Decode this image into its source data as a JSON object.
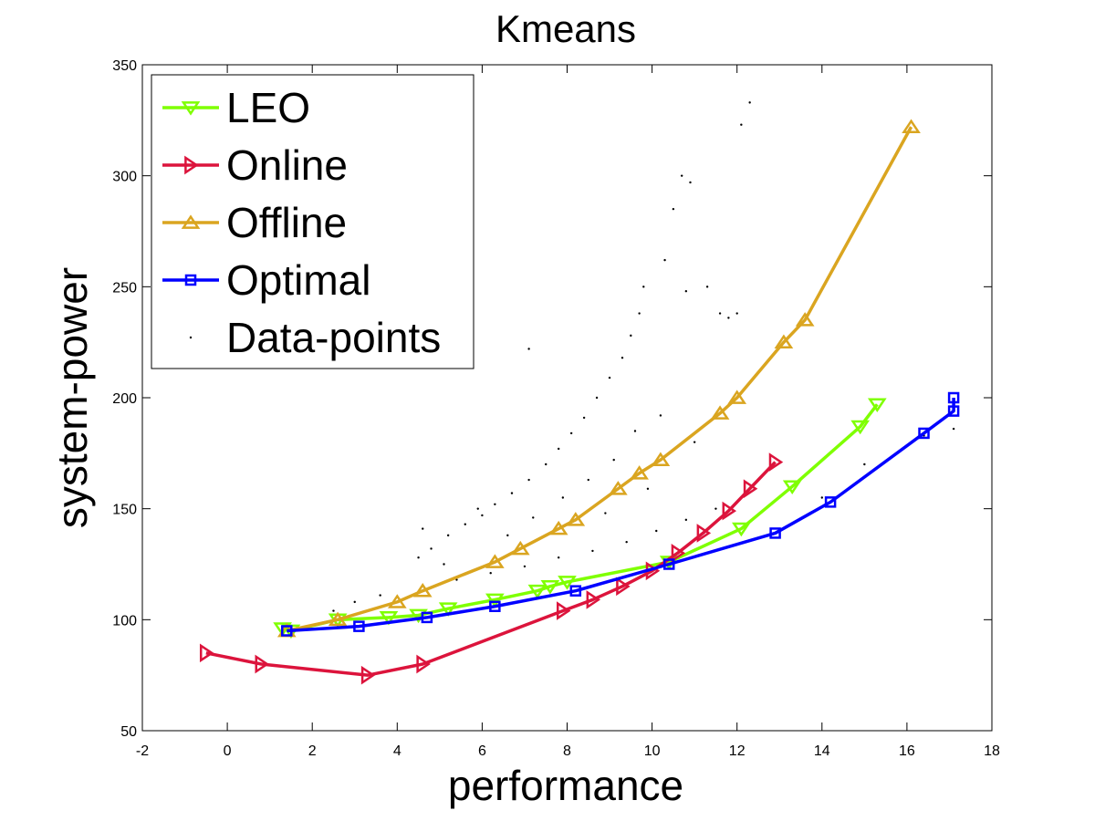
{
  "chart_data": {
    "type": "line",
    "title": "Kmeans",
    "xlabel": "performance",
    "ylabel": "system-power",
    "xlim": [
      -2,
      18
    ],
    "ylim": [
      50,
      350
    ],
    "xticks": [
      -2,
      0,
      2,
      4,
      6,
      8,
      10,
      12,
      14,
      16,
      18
    ],
    "yticks": [
      50,
      100,
      150,
      200,
      250,
      300,
      350
    ],
    "x_tick_labels": [
      "-2",
      "0",
      "2",
      "4",
      "6",
      "8",
      "10",
      "12",
      "14",
      "16",
      "18"
    ],
    "y_tick_labels": [
      "50",
      "100",
      "150",
      "200",
      "250",
      "300",
      "350"
    ],
    "grid": false,
    "legend_position": "top-left",
    "series": [
      {
        "name": "LEO",
        "color": "#7fff00",
        "marker": "triangle-down",
        "x": [
          1.3,
          1.5,
          2.6,
          3.8,
          4.5,
          5.2,
          6.3,
          7.3,
          7.6,
          8.0,
          10.4,
          12.1,
          13.3,
          14.9,
          15.3
        ],
        "y": [
          96,
          95,
          100,
          101,
          102,
          105,
          109,
          113,
          115,
          117,
          126,
          141,
          160,
          187,
          197
        ]
      },
      {
        "name": "Online",
        "color": "#dc143c",
        "marker": "triangle-right",
        "x": [
          -0.5,
          0.8,
          3.3,
          4.6,
          7.9,
          8.6,
          9.3,
          10.0,
          10.6,
          11.2,
          11.8,
          12.3,
          12.9
        ],
        "y": [
          85,
          80,
          75,
          80,
          104,
          109,
          115,
          122,
          130,
          139,
          149,
          159,
          171
        ]
      },
      {
        "name": "Offline",
        "color": "#daa520",
        "marker": "triangle-up",
        "x": [
          1.4,
          2.6,
          4.0,
          4.6,
          6.3,
          6.9,
          7.8,
          8.2,
          9.2,
          9.7,
          10.2,
          11.6,
          12.0,
          13.1,
          13.6,
          16.1
        ],
        "y": [
          95,
          100,
          108,
          113,
          126,
          132,
          141,
          145,
          159,
          166,
          172,
          193,
          200,
          225,
          235,
          322
        ]
      },
      {
        "name": "Optimal",
        "color": "#0000ff",
        "marker": "square",
        "x": [
          1.4,
          3.1,
          4.7,
          6.3,
          8.2,
          10.4,
          12.9,
          14.2,
          16.4,
          17.1,
          17.1
        ],
        "y": [
          95,
          97,
          101,
          106,
          113,
          125,
          139,
          153,
          184,
          194,
          200
        ]
      },
      {
        "name": "Data-points",
        "color": "#000000",
        "marker": "dot",
        "points": [
          [
            4.5,
            128
          ],
          [
            4.8,
            132
          ],
          [
            5.2,
            138
          ],
          [
            5.6,
            143
          ],
          [
            6.0,
            147
          ],
          [
            6.3,
            152
          ],
          [
            6.7,
            157
          ],
          [
            7.1,
            163
          ],
          [
            7.5,
            170
          ],
          [
            7.8,
            177
          ],
          [
            8.1,
            184
          ],
          [
            8.4,
            191
          ],
          [
            8.7,
            200
          ],
          [
            9.0,
            209
          ],
          [
            9.3,
            218
          ],
          [
            9.5,
            228
          ],
          [
            9.7,
            238
          ],
          [
            9.8,
            250
          ],
          [
            10.3,
            262
          ],
          [
            10.5,
            285
          ],
          [
            10.7,
            300
          ],
          [
            10.9,
            297
          ],
          [
            10.8,
            248
          ],
          [
            11.3,
            250
          ],
          [
            11.6,
            238
          ],
          [
            12.1,
            323
          ],
          [
            12.3,
            333
          ],
          [
            4.6,
            141
          ],
          [
            5.1,
            125
          ],
          [
            5.9,
            150
          ],
          [
            6.6,
            138
          ],
          [
            7.2,
            146
          ],
          [
            7.9,
            155
          ],
          [
            8.5,
            163
          ],
          [
            9.1,
            172
          ],
          [
            9.6,
            185
          ],
          [
            10.2,
            192
          ],
          [
            11.0,
            180
          ],
          [
            5.4,
            118
          ],
          [
            6.2,
            121
          ],
          [
            7.0,
            124
          ],
          [
            7.8,
            128
          ],
          [
            8.6,
            131
          ],
          [
            9.4,
            135
          ],
          [
            10.1,
            140
          ],
          [
            10.8,
            145
          ],
          [
            11.5,
            150
          ],
          [
            12.2,
            143
          ],
          [
            13.0,
            137
          ],
          [
            14.0,
            155
          ],
          [
            15.0,
            170
          ],
          [
            16.4,
            183
          ],
          [
            17.1,
            186
          ],
          [
            3.0,
            108
          ],
          [
            3.6,
            111
          ],
          [
            2.5,
            104
          ],
          [
            7.1,
            222
          ],
          [
            8.9,
            148
          ],
          [
            9.9,
            159
          ],
          [
            11.8,
            236
          ],
          [
            12.0,
            238
          ]
        ]
      }
    ]
  }
}
